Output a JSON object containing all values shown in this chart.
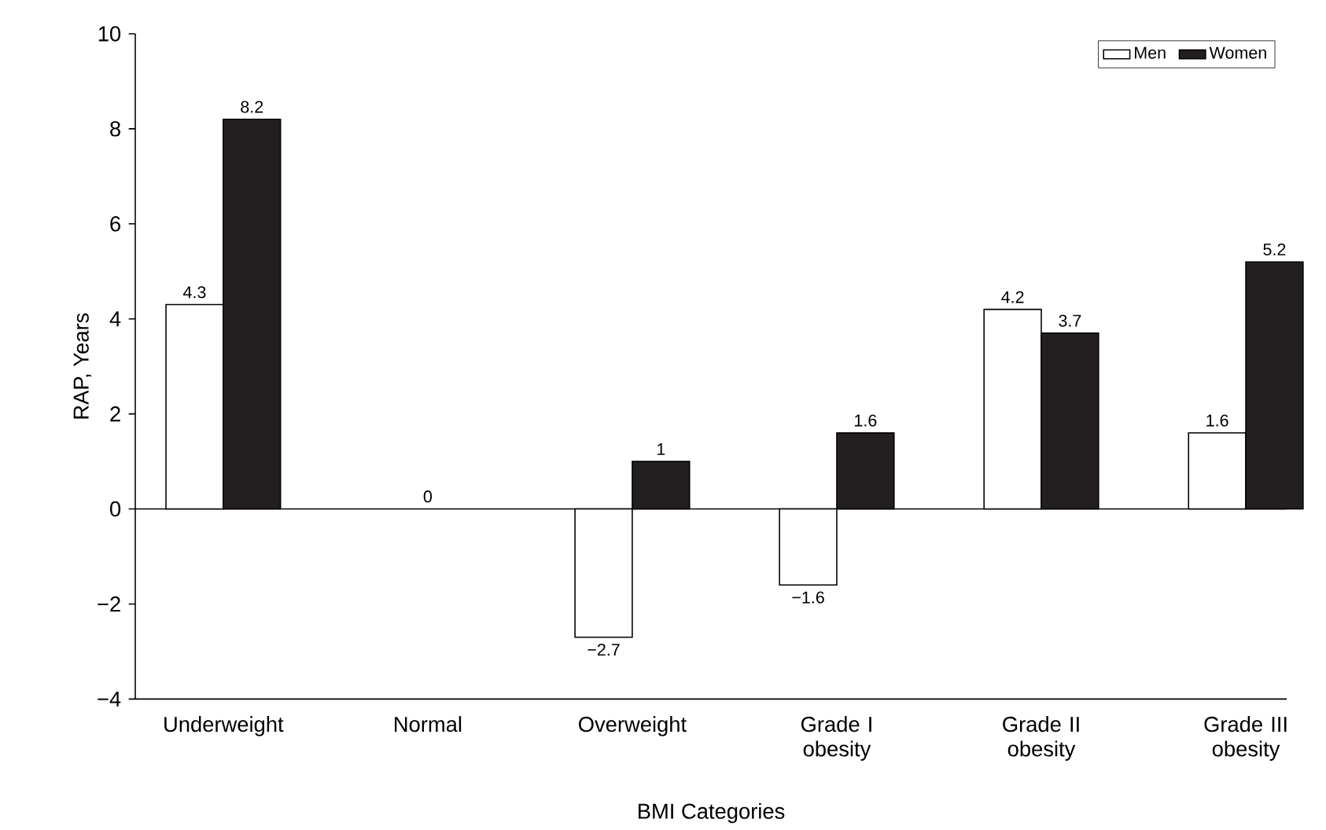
{
  "chart_data": {
    "type": "bar",
    "xlabel": "BMI Categories",
    "ylabel": "RAP, Years",
    "categories": [
      "Underweight",
      "Normal",
      "Overweight",
      "Grade I obesity",
      "Grade II obesity",
      "Grade III obesity"
    ],
    "series": [
      {
        "name": "Men",
        "color": "#ffffff",
        "values": [
          4.3,
          0,
          -2.7,
          -1.6,
          4.2,
          1.6
        ],
        "value_labels": [
          "4.3",
          null,
          "−2.7",
          "−1.6",
          "4.2",
          "1.6"
        ]
      },
      {
        "name": "Women",
        "color": "#231f20",
        "values": [
          8.2,
          0,
          1,
          1.6,
          3.7,
          5.2
        ],
        "value_labels": [
          "8.2",
          null,
          "1",
          "1.6",
          "3.7",
          "5.2"
        ]
      }
    ],
    "annotations": [
      {
        "text": "0",
        "x": "Normal",
        "y": 0
      }
    ],
    "ylim": [
      -4,
      10
    ],
    "yticks": [
      {
        "value": -4,
        "label": "−4"
      },
      {
        "value": -2,
        "label": "−2"
      },
      0,
      2,
      4,
      6,
      8,
      10
    ],
    "legend": "top right"
  }
}
